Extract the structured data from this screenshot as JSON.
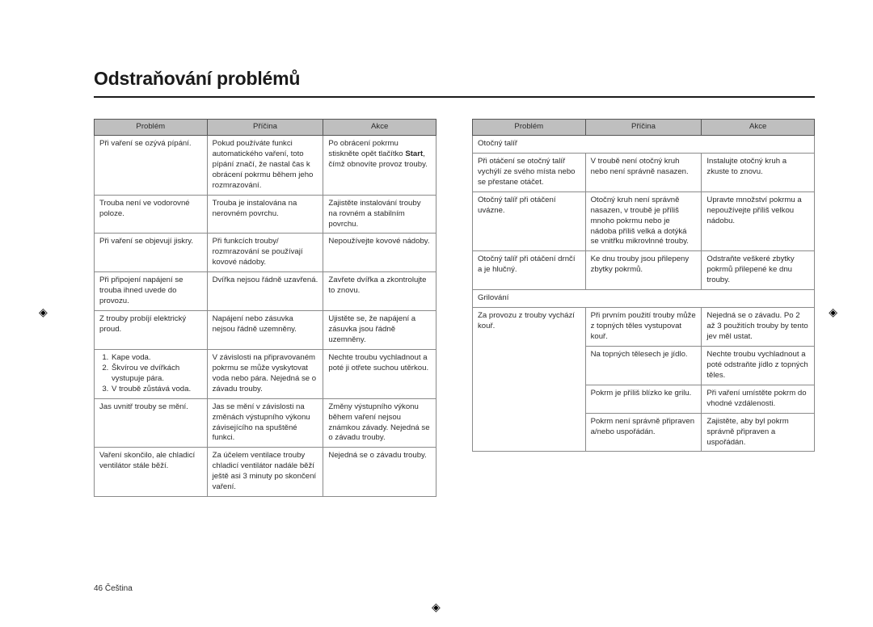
{
  "title": "Odstraňování problémů",
  "pageFooter": "46  Čeština",
  "table1": {
    "headers": [
      "Problém",
      "Příčina",
      "Akce"
    ],
    "rows": [
      {
        "c1": "Při vaření se ozývá pípání.",
        "c2": "Pokud používáte funkci automatického vaření, toto pípání značí, že nastal čas k obrácení pokrmu během jeho rozmrazování.",
        "c3_pre": "Po obrácení pokrmu stiskněte opět tlačítko ",
        "c3_bold": "Start",
        "c3_post": ", čímž obnovíte provoz trouby."
      },
      {
        "c1": "Trouba není ve vodorovné poloze.",
        "c2": "Trouba je instalována na nerovném povrchu.",
        "c3": "Zajistěte instalování trouby na rovném a stabilním povrchu."
      },
      {
        "c1": "Při vaření se objevují jiskry.",
        "c2": "Při funkcích trouby/ rozmrazování se používají kovové nádoby.",
        "c3": "Nepoužívejte kovové nádoby."
      },
      {
        "c1": "Při připojení napájení se trouba ihned uvede do provozu.",
        "c2": "Dvířka nejsou řádně uzavřená.",
        "c3": "Zavřete dvířka a zkontrolujte to znovu."
      },
      {
        "c1": "Z trouby probíjí elektrický proud.",
        "c2": "Napájení nebo zásuvka nejsou řádně uzemněny.",
        "c3": "Ujistěte se, že napájení a zásuvka jsou řádně uzemněny."
      },
      {
        "c1_list": [
          "Kape voda.",
          "Škvírou ve dvířkách vystupuje pára.",
          "V troubě zůstává voda."
        ],
        "c2": "V závislosti na připravovaném pokrmu se může vyskytovat voda nebo pára. Nejedná se o závadu trouby.",
        "c3": "Nechte troubu vychladnout a poté ji otřete suchou utěrkou."
      },
      {
        "c1": "Jas uvnitř trouby se mění.",
        "c2": "Jas se mění v závislosti na změnách výstupního výkonu závisejícího na spuštěné funkci.",
        "c3": "Změny výstupního výkonu během vaření nejsou známkou závady. Nejedná se o závadu trouby."
      },
      {
        "c1": "Vaření skončilo, ale chladicí ventilátor stále běží.",
        "c2": "Za účelem ventilace trouby chladicí ventilátor nadále běží ještě asi 3 minuty po skončení vaření.",
        "c3": "Nejedná se o závadu trouby."
      }
    ]
  },
  "table2": {
    "headers": [
      "Problém",
      "Příčina",
      "Akce"
    ],
    "sections": [
      {
        "title": "Otočný talíř",
        "rows": [
          {
            "c1": "Při otáčení se otočný talíř vychýlí ze svého místa nebo se přestane otáčet.",
            "c2": "V troubě není otočný kruh nebo není správně nasazen.",
            "c3": "Instalujte otočný kruh a zkuste to znovu."
          },
          {
            "c1": "Otočný talíř při otáčení uvázne.",
            "c2": "Otočný kruh není správně nasazen, v troubě je příliš mnoho pokrmu nebo je nádoba příliš velká a dotýká se vnitřku mikrovlnné trouby.",
            "c3": "Upravte množství pokrmu a nepoužívejte příliš velkou nádobu."
          },
          {
            "c1": "Otočný talíř při otáčení drnčí a je hlučný.",
            "c2": "Ke dnu trouby jsou přilepeny zbytky pokrmů.",
            "c3": "Odstraňte veškeré zbytky pokrmů přilepené ke dnu trouby."
          }
        ]
      },
      {
        "title": "Grilování",
        "rows": [
          {
            "c1": "Za provozu z trouby vychází kouř.",
            "c1_rowspan": 4,
            "c2": "Při prvním použití trouby může z topných těles vystupovat kouř.",
            "c3": "Nejedná se o závadu. Po 2 až 3 použitích trouby by tento jev měl ustat."
          },
          {
            "c2": "Na topných tělesech je jídlo.",
            "c3": "Nechte troubu vychladnout a poté odstraňte jídlo z topných těles."
          },
          {
            "c2": "Pokrm je příliš blízko ke grilu.",
            "c3": "Při vaření umístěte pokrm do vhodné vzdálenosti."
          },
          {
            "c2": "Pokrm není správně připraven a/nebo uspořádán.",
            "c3": "Zajistěte, aby byl pokrm správně připraven a uspořádán."
          }
        ]
      }
    ]
  }
}
